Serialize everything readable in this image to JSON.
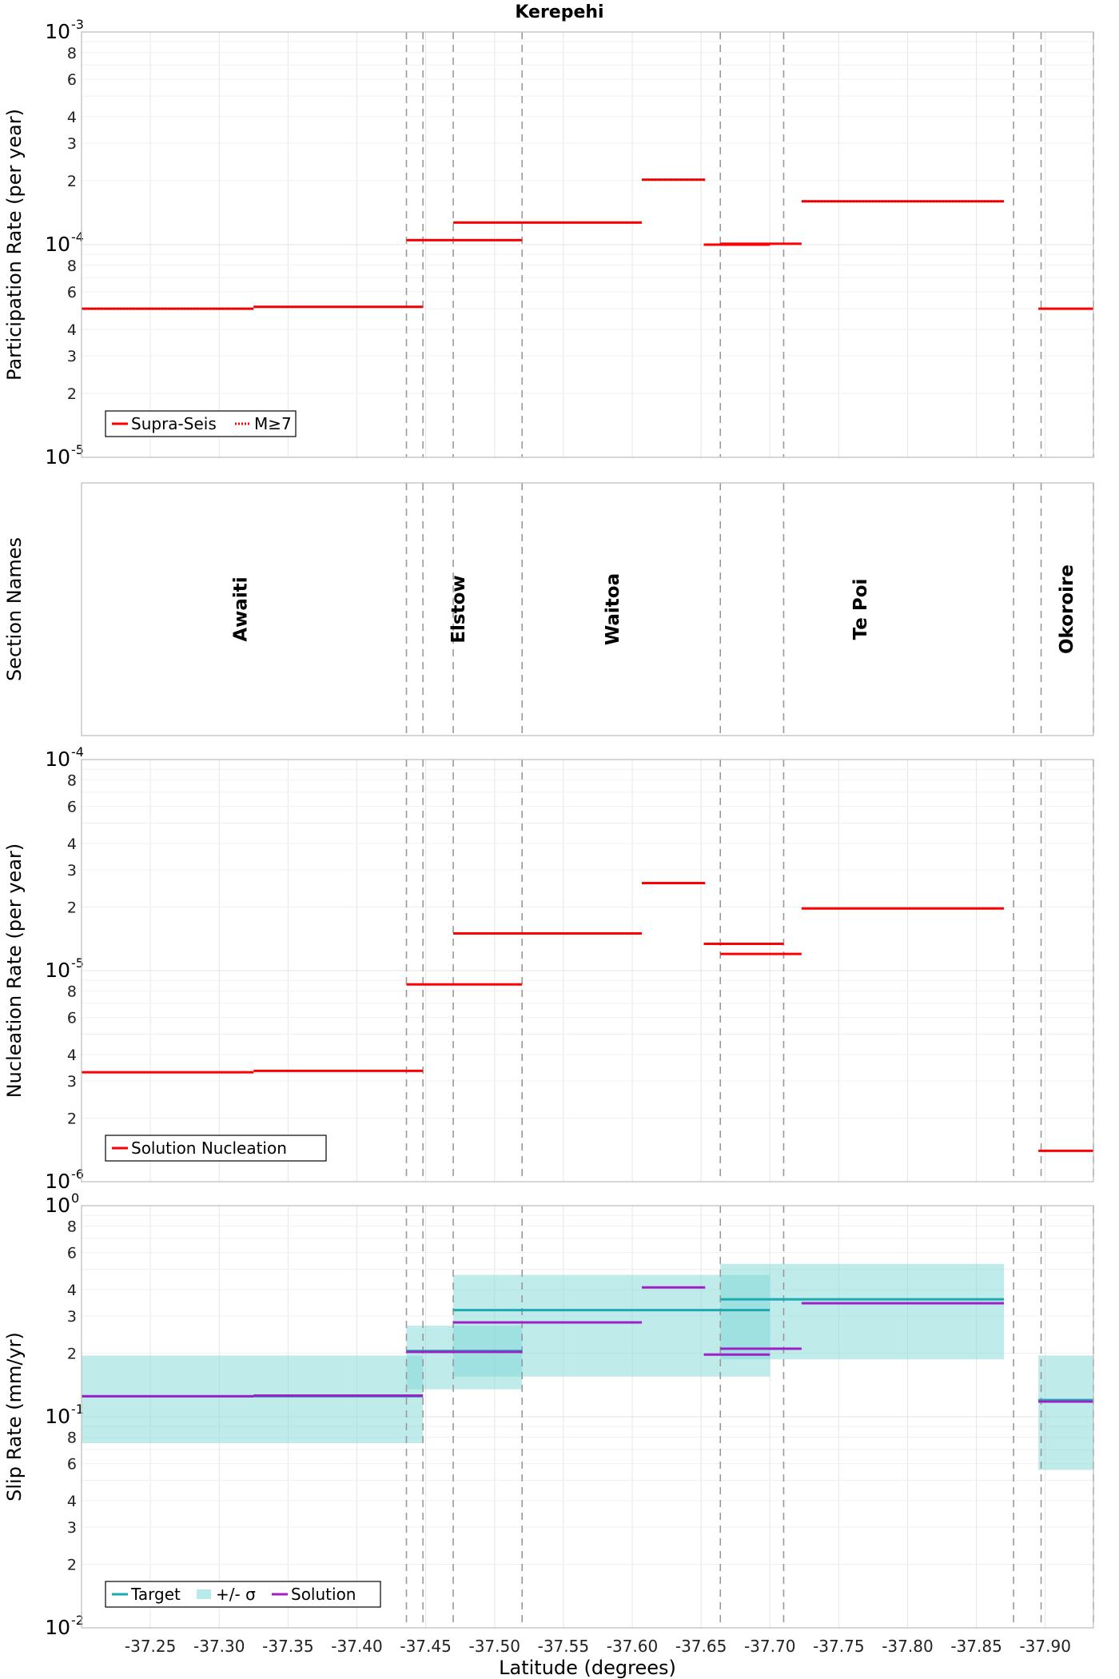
{
  "figure": {
    "title": "Kerepehi",
    "xlabel": "Latitude (degrees)",
    "colors": {
      "red": "#ff0000",
      "target": "#1aaab0",
      "band": "#7fd8d8",
      "solution": "#a020c8",
      "grid": "#e6e6e6",
      "boundary": "#999999"
    }
  },
  "chart_data": [
    {
      "type": "line",
      "panel": "participation",
      "ylabel": "Participation Rate (per year)",
      "yscale": "log",
      "ylim": [
        1e-05,
        0.001
      ],
      "xlim": [
        -37.2,
        -37.935
      ],
      "x_ticks": [
        -37.25,
        -37.3,
        -37.35,
        -37.4,
        -37.45,
        -37.5,
        -37.55,
        -37.6,
        -37.65,
        -37.7,
        -37.75,
        -37.8,
        -37.85,
        -37.9
      ],
      "grid": true,
      "legend": {
        "position": "bottom-left",
        "entries": [
          "Supra-Seis",
          "M≥7"
        ]
      },
      "series": [
        {
          "name": "Supra-Seis",
          "style": "solid",
          "segments": [
            {
              "x": [
                -37.2,
                -37.325
              ],
              "y": 5e-05
            },
            {
              "x": [
                -37.325,
                -37.448
              ],
              "y": 5.1e-05
            },
            {
              "x": [
                -37.436,
                -37.47
              ],
              "y": 0.000105
            },
            {
              "x": [
                -37.47,
                -37.52
              ],
              "y": 0.000105
            },
            {
              "x": [
                -37.47,
                -37.607
              ],
              "y": 0.000127
            },
            {
              "x": [
                -37.607,
                -37.653
              ],
              "y": 0.000202
            },
            {
              "x": [
                -37.652,
                -37.7
              ],
              "y": 0.0001
            },
            {
              "x": [
                -37.664,
                -37.723
              ],
              "y": 0.000101
            },
            {
              "x": [
                -37.723,
                -37.87
              ],
              "y": 0.00016
            },
            {
              "x": [
                -37.895,
                -37.935
              ],
              "y": 5e-05
            }
          ]
        },
        {
          "name": "M≥7",
          "style": "dotted",
          "segments": [
            {
              "x": [
                -37.2,
                -37.325
              ],
              "y": 5e-05
            },
            {
              "x": [
                -37.325,
                -37.448
              ],
              "y": 5.1e-05
            },
            {
              "x": [
                -37.607,
                -37.653
              ],
              "y": 0.000202
            },
            {
              "x": [
                -37.723,
                -37.87
              ],
              "y": 0.00016
            }
          ]
        }
      ]
    },
    {
      "type": "table",
      "panel": "sections",
      "ylabel": "Section Names",
      "sections": [
        {
          "name": "Awaiti",
          "x": -37.32
        },
        {
          "name": "Elstow",
          "x": -37.478
        },
        {
          "name": "Waitoa",
          "x": -37.59
        },
        {
          "name": "Te Poi",
          "x": -37.77
        },
        {
          "name": "Okoroire",
          "x": -37.92
        }
      ]
    },
    {
      "type": "line",
      "panel": "nucleation",
      "ylabel": "Nucleation Rate (per year)",
      "yscale": "log",
      "ylim": [
        1e-06,
        0.0001
      ],
      "grid": true,
      "legend": {
        "position": "bottom-left",
        "entries": [
          "Solution Nucleation"
        ]
      },
      "series": [
        {
          "name": "Solution Nucleation",
          "segments": [
            {
              "x": [
                -37.2,
                -37.325
              ],
              "y": 3.3e-06
            },
            {
              "x": [
                -37.325,
                -37.448
              ],
              "y": 3.35e-06
            },
            {
              "x": [
                -37.436,
                -37.52
              ],
              "y": 8.6e-06
            },
            {
              "x": [
                -37.47,
                -37.607
              ],
              "y": 1.5e-05
            },
            {
              "x": [
                -37.607,
                -37.653
              ],
              "y": 2.6e-05
            },
            {
              "x": [
                -37.652,
                -37.71
              ],
              "y": 1.34e-05
            },
            {
              "x": [
                -37.664,
                -37.723
              ],
              "y": 1.2e-05
            },
            {
              "x": [
                -37.723,
                -37.87
              ],
              "y": 1.97e-05
            },
            {
              "x": [
                -37.895,
                -37.935
              ],
              "y": 1.4e-06
            }
          ]
        }
      ]
    },
    {
      "type": "line",
      "panel": "slip",
      "ylabel": "Slip Rate (mm/yr)",
      "yscale": "log",
      "ylim": [
        0.01,
        1
      ],
      "grid": true,
      "legend": {
        "position": "bottom-left",
        "entries": [
          "Target",
          "+/- σ",
          "Solution"
        ]
      },
      "series": [
        {
          "name": "+/- σ",
          "type": "band",
          "segments": [
            {
              "x": [
                -37.2,
                -37.448
              ],
              "low": 0.075,
              "high": 0.195
            },
            {
              "x": [
                -37.436,
                -37.52
              ],
              "low": 0.135,
              "high": 0.27
            },
            {
              "x": [
                -37.47,
                -37.7
              ],
              "low": 0.155,
              "high": 0.47
            },
            {
              "x": [
                -37.664,
                -37.87
              ],
              "low": 0.187,
              "high": 0.53
            },
            {
              "x": [
                -37.895,
                -37.935
              ],
              "low": 0.056,
              "high": 0.195
            }
          ]
        },
        {
          "name": "Target",
          "segments": [
            {
              "x": [
                -37.2,
                -37.448
              ],
              "y": 0.125
            },
            {
              "x": [
                -37.436,
                -37.52
              ],
              "y": 0.205
            },
            {
              "x": [
                -37.47,
                -37.7
              ],
              "y": 0.32
            },
            {
              "x": [
                -37.664,
                -37.87
              ],
              "y": 0.36
            },
            {
              "x": [
                -37.895,
                -37.935
              ],
              "y": 0.12
            }
          ]
        },
        {
          "name": "Solution",
          "segments": [
            {
              "x": [
                -37.2,
                -37.325
              ],
              "y": 0.125
            },
            {
              "x": [
                -37.325,
                -37.448
              ],
              "y": 0.126
            },
            {
              "x": [
                -37.436,
                -37.52
              ],
              "y": 0.203
            },
            {
              "x": [
                -37.47,
                -37.607
              ],
              "y": 0.28
            },
            {
              "x": [
                -37.607,
                -37.653
              ],
              "y": 0.41
            },
            {
              "x": [
                -37.652,
                -37.7
              ],
              "y": 0.197
            },
            {
              "x": [
                -37.664,
                -37.723
              ],
              "y": 0.21
            },
            {
              "x": [
                -37.723,
                -37.87
              ],
              "y": 0.345
            },
            {
              "x": [
                -37.895,
                -37.935
              ],
              "y": 0.118
            }
          ]
        }
      ]
    }
  ],
  "boundaries": [
    -37.436,
    -37.448,
    -37.47,
    -37.52,
    -37.664,
    -37.71,
    -37.877,
    -37.897,
    -37.935
  ]
}
